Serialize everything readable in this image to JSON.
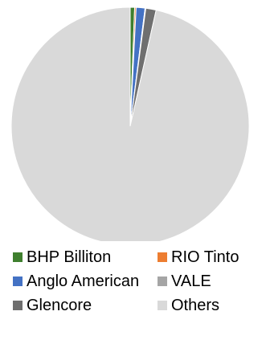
{
  "chart_data": {
    "type": "pie",
    "title": "",
    "slices": [
      {
        "label": "BHP Billiton",
        "value": 0.6,
        "color": "#3f7f2e"
      },
      {
        "label": "RIO Tinto",
        "value": 0.2,
        "color": "#ed7d31"
      },
      {
        "label": "Anglo American",
        "value": 1.2,
        "color": "#4472c4"
      },
      {
        "label": "VALE",
        "value": 0.1,
        "color": "#a5a5a5"
      },
      {
        "label": "Glencore",
        "value": 1.4,
        "color": "#6f6f6f"
      },
      {
        "label": "Others",
        "value": 96.5,
        "color": "#d9d9d9"
      }
    ],
    "legend": {
      "placement": "bottom",
      "columns": 2
    }
  }
}
